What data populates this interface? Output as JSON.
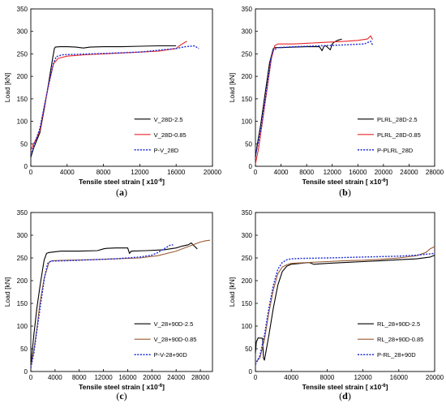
{
  "chart_data": [
    {
      "type": "line",
      "caption": "a",
      "xlabel": "Tensile steel strain",
      "xunit": "[ x10",
      "xunit_exp": "-6",
      "xunit_close": "]",
      "ylabel": "Load [kN]",
      "xlim": [
        0,
        20000
      ],
      "ylim": [
        0,
        350
      ],
      "xticks": [
        "0",
        "4000",
        "8000",
        "12000",
        "16000",
        "20000"
      ],
      "yticks": [
        "0",
        "50",
        "100",
        "150",
        "200",
        "250",
        "300",
        "350"
      ],
      "legend_position": "lower-right",
      "series": [
        {
          "name": "V_28D-2.5",
          "color": "#000000",
          "dash": "solid",
          "x": [
            0,
            300,
            600,
            1000,
            1500,
            2000,
            2400,
            2600,
            2700,
            3200,
            4000,
            5000,
            5400,
            5800,
            6500,
            8000,
            10000,
            12000,
            14000,
            16000
          ],
          "y": [
            20,
            40,
            55,
            75,
            130,
            190,
            240,
            262,
            265,
            266,
            266,
            265,
            264,
            263,
            265,
            266,
            266,
            267,
            268,
            268
          ]
        },
        {
          "name": "V_28D-0.85",
          "color": "#e8262a",
          "dash": "solid",
          "x": [
            0,
            300,
            700,
            1000,
            1500,
            2000,
            2500,
            3000,
            4000,
            6000,
            8000,
            10000,
            12000,
            14000,
            16000,
            16500,
            17000,
            17200
          ],
          "y": [
            35,
            50,
            65,
            80,
            135,
            185,
            228,
            240,
            245,
            248,
            250,
            252,
            254,
            256,
            262,
            270,
            276,
            278
          ]
        },
        {
          "name": "P-V_28D",
          "color": "#1c2bd6",
          "dash": "dotted",
          "x": [
            0,
            500,
            1000,
            1500,
            2000,
            2500,
            2800,
            3500,
            5000,
            8000,
            12000,
            16000,
            17000,
            18000,
            18500
          ],
          "y": [
            25,
            55,
            85,
            135,
            185,
            230,
            244,
            248,
            249,
            251,
            254,
            262,
            266,
            268,
            262
          ]
        }
      ]
    },
    {
      "type": "line",
      "caption": "b",
      "xlabel": "Tensile steel strain",
      "xunit": "[ x10",
      "xunit_exp": "-6",
      "xunit_close": "]",
      "ylabel": "Load [kN]",
      "xlim": [
        0,
        28000
      ],
      "ylim": [
        0,
        350
      ],
      "xticks": [
        "0",
        "4000",
        "8000",
        "12000",
        "16000",
        "20000",
        "24000",
        "28000"
      ],
      "yticks": [
        "0",
        "50",
        "100",
        "150",
        "200",
        "250",
        "300",
        "350"
      ],
      "legend_position": "lower-right",
      "series": [
        {
          "name": "PLRL_28D-2.5",
          "color": "#000000",
          "dash": "solid",
          "x": [
            0,
            300,
            800,
            1500,
            2200,
            2800,
            3000,
            4000,
            6000,
            8000,
            10000,
            10400,
            10700,
            11000,
            11700,
            12000,
            12300,
            12800,
            13500
          ],
          "y": [
            20,
            50,
            90,
            160,
            230,
            262,
            264,
            264,
            265,
            266,
            266,
            257,
            267,
            268,
            259,
            272,
            276,
            280,
            283
          ]
        },
        {
          "name": "PLRL_28D-0.85",
          "color": "#e8262a",
          "dash": "solid",
          "x": [
            0,
            500,
            1000,
            1800,
            2500,
            3000,
            3500,
            6000,
            10000,
            14000,
            16000,
            17500,
            18000,
            18300
          ],
          "y": [
            5,
            40,
            90,
            170,
            240,
            268,
            272,
            272,
            275,
            278,
            280,
            283,
            290,
            282
          ]
        },
        {
          "name": "P-PLRL_28D",
          "color": "#1c2bd6",
          "dash": "dotted",
          "x": [
            0,
            500,
            1000,
            1800,
            2500,
            2800,
            3500,
            6000,
            10000,
            14000,
            17000,
            18000,
            18300
          ],
          "y": [
            25,
            55,
            95,
            175,
            245,
            258,
            264,
            266,
            268,
            270,
            272,
            278,
            270
          ]
        }
      ]
    },
    {
      "type": "line",
      "caption": "c",
      "xlabel": "Tensile steel strain",
      "xunit": "[ x10",
      "xunit_exp": "-6",
      "xunit_close": "]",
      "ylabel": "Load [kN]",
      "xlim": [
        0,
        30000
      ],
      "ylim": [
        0,
        350
      ],
      "xticks": [
        "0",
        "4000",
        "8000",
        "12000",
        "16000",
        "20000",
        "24000",
        "28000"
      ],
      "yticks": [
        "0",
        "50",
        "100",
        "150",
        "200",
        "250",
        "300",
        "350"
      ],
      "legend_position": "lower-right",
      "series": [
        {
          "name": "V_28+90D-2.5",
          "color": "#000000",
          "dash": "solid",
          "x": [
            0,
            200,
            500,
            1000,
            1600,
            2200,
            2600,
            3000,
            5000,
            8000,
            11000,
            12000,
            12500,
            14000,
            16000,
            16300,
            16600,
            19000,
            22000,
            24000,
            25000,
            26000,
            26500,
            27000,
            27500
          ],
          "y": [
            15,
            40,
            80,
            140,
            195,
            245,
            260,
            262,
            265,
            265,
            266,
            270,
            271,
            272,
            272,
            260,
            265,
            266,
            268,
            272,
            276,
            279,
            283,
            276,
            270
          ]
        },
        {
          "name": "V_28+90D-0.85",
          "color": "#9b5b34",
          "dash": "solid",
          "x": [
            0,
            500,
            1000,
            1500,
            2200,
            3000,
            3500,
            6000,
            10000,
            14000,
            18000,
            21000,
            24000,
            26000,
            28000,
            29000,
            29600
          ],
          "y": [
            10,
            45,
            95,
            150,
            205,
            240,
            244,
            245,
            246,
            248,
            250,
            255,
            265,
            275,
            285,
            288,
            289
          ]
        },
        {
          "name": "P-V-28+90D",
          "color": "#1c2bd6",
          "dash": "dotted",
          "x": [
            0,
            500,
            1000,
            1600,
            2300,
            2800,
            3300,
            6000,
            10000,
            14000,
            18000,
            20000,
            21000,
            22000,
            23000,
            23500
          ],
          "y": [
            8,
            40,
            90,
            145,
            210,
            238,
            243,
            244,
            246,
            248,
            252,
            256,
            262,
            270,
            278,
            279
          ]
        }
      ]
    },
    {
      "type": "line",
      "caption": "d",
      "xlabel": "Tensile steel strain",
      "xunit": "[ x10",
      "xunit_exp": "-6",
      "xunit_close": "]",
      "ylabel": "Load [kN]",
      "xlim": [
        0,
        20000
      ],
      "ylim": [
        0,
        350
      ],
      "xticks": [
        "0",
        "4000",
        "8000",
        "12000",
        "16000",
        "20000"
      ],
      "yticks": [
        "0",
        "50",
        "100",
        "150",
        "200",
        "250",
        "300",
        "350"
      ],
      "legend_position": "lower-right",
      "series": [
        {
          "name": "RL_28+90D-2.5",
          "color": "#000000",
          "dash": "solid",
          "x": [
            0,
            100,
            300,
            800,
            900,
            1000,
            1500,
            2000,
            2500,
            3000,
            3500,
            4000,
            5000,
            6000,
            6500,
            8000,
            10000,
            12000,
            14000,
            16000,
            18000,
            19500,
            20000
          ],
          "y": [
            40,
            65,
            74,
            73,
            30,
            25,
            80,
            140,
            190,
            220,
            232,
            236,
            238,
            240,
            236,
            238,
            240,
            242,
            244,
            246,
            248,
            252,
            256
          ]
        },
        {
          "name": "RL_28+90D-0.85",
          "color": "#9b5b34",
          "dash": "solid",
          "x": [
            0,
            500,
            1000,
            1500,
            2000,
            2500,
            3000,
            3500,
            4000,
            6000,
            8000,
            10000,
            12000,
            14000,
            16000,
            18000,
            19000,
            19500,
            20000
          ],
          "y": [
            20,
            30,
            70,
            130,
            180,
            215,
            230,
            235,
            238,
            240,
            242,
            244,
            245,
            247,
            250,
            255,
            262,
            270,
            275
          ]
        },
        {
          "name": "P-RL_28+90D",
          "color": "#1c2bd6",
          "dash": "dotted",
          "x": [
            0,
            500,
            1000,
            1500,
            2000,
            2500,
            3000,
            3500,
            4000,
            5000,
            8000,
            12000,
            16000,
            18000,
            20000
          ],
          "y": [
            15,
            35,
            80,
            140,
            190,
            225,
            240,
            246,
            248,
            249,
            250,
            252,
            254,
            256,
            260
          ]
        }
      ]
    }
  ]
}
